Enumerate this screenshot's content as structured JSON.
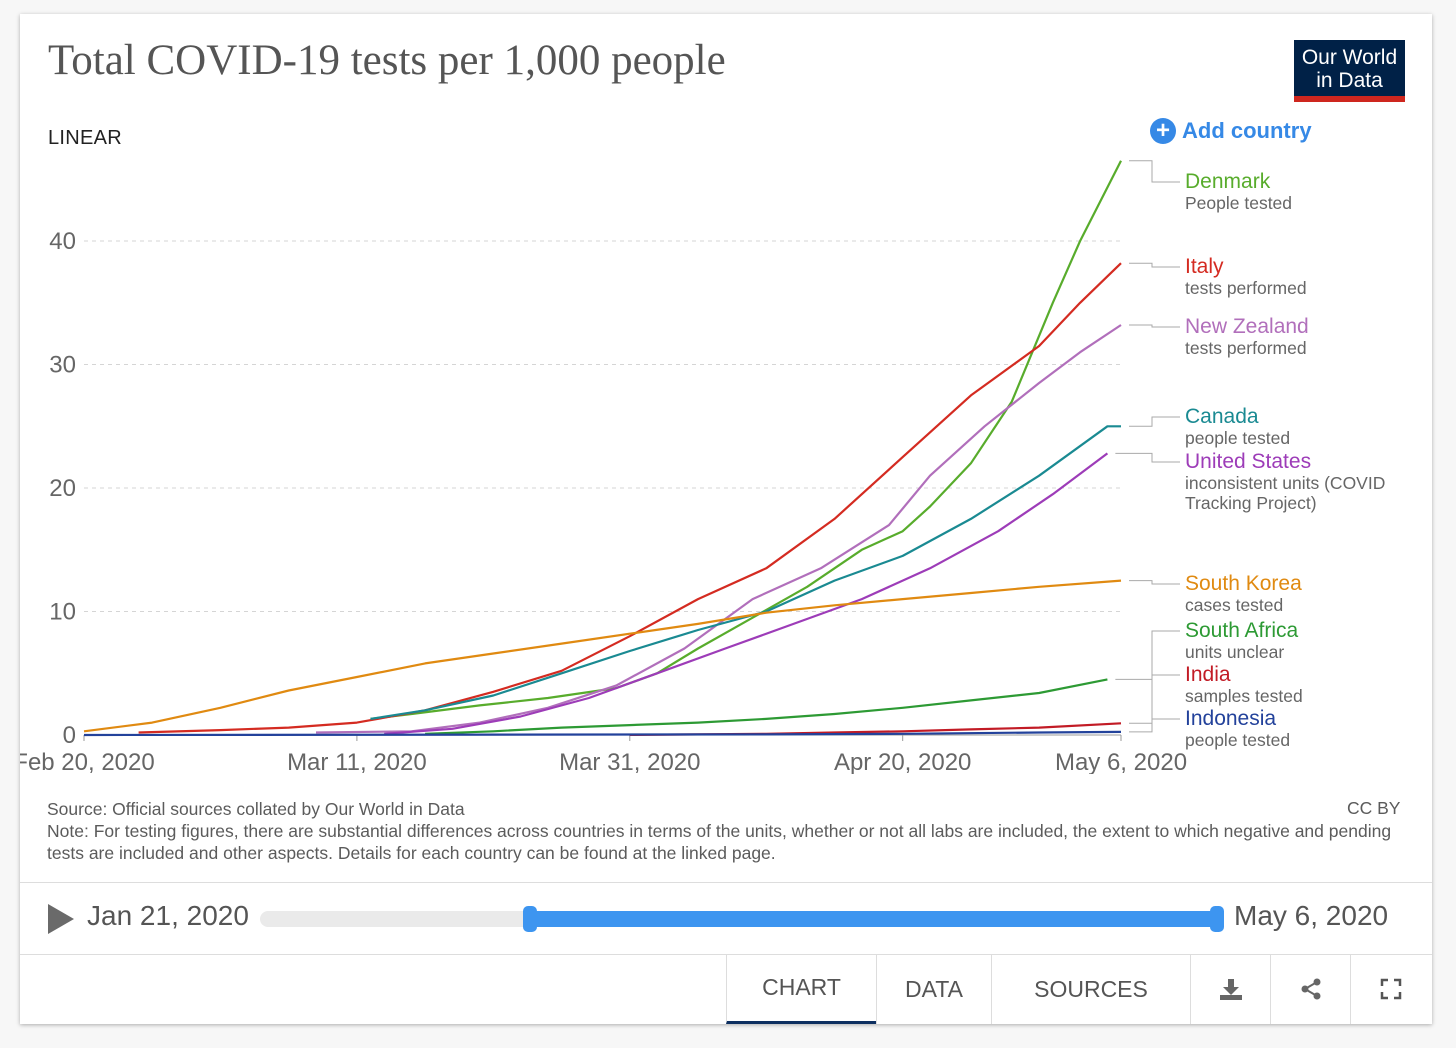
{
  "title": "Total COVID-19 tests per 1,000 people",
  "logo": {
    "line1": "Our World",
    "line2": "in Data"
  },
  "scale_toggle": "LINEAR",
  "add_country": "Add country",
  "footer": {
    "source": "Source: Official sources collated by Our World in Data",
    "note": "Note: For testing figures, there are substantial differences across countries in terms of the units, whether or not all labs are included, the extent to which negative and pending tests are included and other aspects. Details for each country can be found at the linked page.",
    "license": "CC BY"
  },
  "timeline": {
    "start": "Jan 21, 2020",
    "end": "May 6, 2020"
  },
  "tabs": {
    "chart": "CHART",
    "data": "DATA",
    "sources": "SOURCES"
  },
  "icons": {
    "play": "play-icon",
    "download": "download-icon",
    "share": "share-icon",
    "fullscreen": "fullscreen-icon",
    "add": "plus-circle-icon"
  },
  "chart_data": {
    "type": "line",
    "title": "Total COVID-19 tests per 1,000 people",
    "x_ticks": [
      "Feb 20, 2020",
      "Mar 11, 2020",
      "Mar 31, 2020",
      "Apr 20, 2020",
      "May 6, 2020"
    ],
    "y_ticks": [
      0,
      10,
      20,
      30,
      40
    ],
    "xlim": [
      "2020-02-20",
      "2020-05-06"
    ],
    "ylim": [
      0,
      47
    ],
    "grid": "horizontal dashed",
    "legend": "right, line labels",
    "series": [
      {
        "name": "Denmark",
        "unit": "People tested",
        "color": "#58ac2c",
        "points": [
          [
            "2020-03-12",
            1.3
          ],
          [
            "2020-03-15",
            1.7
          ],
          [
            "2020-03-20",
            2.4
          ],
          [
            "2020-03-25",
            3.0
          ],
          [
            "2020-03-30",
            3.8
          ],
          [
            "2020-04-02",
            5.0
          ],
          [
            "2020-04-05",
            7.0
          ],
          [
            "2020-04-09",
            9.5
          ],
          [
            "2020-04-13",
            12.0
          ],
          [
            "2020-04-17",
            15.0
          ],
          [
            "2020-04-20",
            16.5
          ],
          [
            "2020-04-22",
            18.5
          ],
          [
            "2020-04-25",
            22.0
          ],
          [
            "2020-04-28",
            27.0
          ],
          [
            "2020-05-01",
            35.0
          ],
          [
            "2020-05-03",
            40.0
          ],
          [
            "2020-05-06",
            46.5
          ]
        ]
      },
      {
        "name": "Italy",
        "unit": "tests performed",
        "color": "#d42b21",
        "points": [
          [
            "2020-02-24",
            0.2
          ],
          [
            "2020-03-01",
            0.4
          ],
          [
            "2020-03-06",
            0.6
          ],
          [
            "2020-03-11",
            1.0
          ],
          [
            "2020-03-16",
            2.0
          ],
          [
            "2020-03-21",
            3.5
          ],
          [
            "2020-03-26",
            5.2
          ],
          [
            "2020-03-31",
            8.0
          ],
          [
            "2020-04-05",
            11.0
          ],
          [
            "2020-04-10",
            13.5
          ],
          [
            "2020-04-15",
            17.5
          ],
          [
            "2020-04-20",
            22.5
          ],
          [
            "2020-04-25",
            27.5
          ],
          [
            "2020-04-30",
            31.5
          ],
          [
            "2020-05-03",
            35.0
          ],
          [
            "2020-05-06",
            38.2
          ]
        ]
      },
      {
        "name": "New Zealand",
        "unit": "tests performed",
        "color": "#b16fbb",
        "points": [
          [
            "2020-03-08",
            0.2
          ],
          [
            "2020-03-15",
            0.3
          ],
          [
            "2020-03-20",
            1.0
          ],
          [
            "2020-03-25",
            2.2
          ],
          [
            "2020-03-30",
            4.0
          ],
          [
            "2020-04-04",
            7.0
          ],
          [
            "2020-04-09",
            11.0
          ],
          [
            "2020-04-14",
            13.5
          ],
          [
            "2020-04-19",
            17.0
          ],
          [
            "2020-04-22",
            21.0
          ],
          [
            "2020-04-26",
            25.0
          ],
          [
            "2020-04-30",
            28.5
          ],
          [
            "2020-05-03",
            31.0
          ],
          [
            "2020-05-06",
            33.2
          ]
        ]
      },
      {
        "name": "Canada",
        "unit": "people tested",
        "color": "#1a8a92",
        "points": [
          [
            "2020-03-12",
            1.3
          ],
          [
            "2020-03-16",
            2.0
          ],
          [
            "2020-03-21",
            3.2
          ],
          [
            "2020-03-26",
            5.0
          ],
          [
            "2020-03-31",
            6.8
          ],
          [
            "2020-04-05",
            8.5
          ],
          [
            "2020-04-10",
            10.0
          ],
          [
            "2020-04-15",
            12.5
          ],
          [
            "2020-04-20",
            14.5
          ],
          [
            "2020-04-25",
            17.5
          ],
          [
            "2020-04-30",
            21.0
          ],
          [
            "2020-05-05",
            25.0
          ],
          [
            "2020-05-06",
            25.0
          ]
        ]
      },
      {
        "name": "United States",
        "unit": "inconsistent units (COVID Tracking Project)",
        "color": "#9d3cb8",
        "points": [
          [
            "2020-03-13",
            0.1
          ],
          [
            "2020-03-18",
            0.5
          ],
          [
            "2020-03-23",
            1.5
          ],
          [
            "2020-03-28",
            3.0
          ],
          [
            "2020-04-02",
            5.0
          ],
          [
            "2020-04-07",
            7.0
          ],
          [
            "2020-04-12",
            9.0
          ],
          [
            "2020-04-17",
            11.0
          ],
          [
            "2020-04-22",
            13.5
          ],
          [
            "2020-04-27",
            16.5
          ],
          [
            "2020-05-01",
            19.5
          ],
          [
            "2020-05-05",
            22.8
          ]
        ]
      },
      {
        "name": "South Korea",
        "unit": "cases tested",
        "color": "#e08a11",
        "points": [
          [
            "2020-02-20",
            0.3
          ],
          [
            "2020-02-25",
            1.0
          ],
          [
            "2020-03-01",
            2.2
          ],
          [
            "2020-03-06",
            3.6
          ],
          [
            "2020-03-11",
            4.7
          ],
          [
            "2020-03-16",
            5.8
          ],
          [
            "2020-03-21",
            6.6
          ],
          [
            "2020-03-26",
            7.4
          ],
          [
            "2020-03-31",
            8.2
          ],
          [
            "2020-04-05",
            9.0
          ],
          [
            "2020-04-10",
            9.9
          ],
          [
            "2020-04-15",
            10.5
          ],
          [
            "2020-04-20",
            11.0
          ],
          [
            "2020-04-25",
            11.5
          ],
          [
            "2020-04-30",
            12.0
          ],
          [
            "2020-05-06",
            12.5
          ]
        ]
      },
      {
        "name": "South Africa",
        "unit": "units unclear",
        "color": "#2d9a34",
        "points": [
          [
            "2020-03-16",
            0.1
          ],
          [
            "2020-03-21",
            0.3
          ],
          [
            "2020-03-26",
            0.6
          ],
          [
            "2020-03-31",
            0.8
          ],
          [
            "2020-04-05",
            1.0
          ],
          [
            "2020-04-10",
            1.3
          ],
          [
            "2020-04-15",
            1.7
          ],
          [
            "2020-04-20",
            2.2
          ],
          [
            "2020-04-25",
            2.8
          ],
          [
            "2020-04-30",
            3.4
          ],
          [
            "2020-05-05",
            4.5
          ]
        ]
      },
      {
        "name": "India",
        "unit": "samples tested",
        "color": "#c21b25",
        "points": [
          [
            "2020-03-31",
            0.01
          ],
          [
            "2020-04-05",
            0.05
          ],
          [
            "2020-04-10",
            0.1
          ],
          [
            "2020-04-15",
            0.2
          ],
          [
            "2020-04-20",
            0.3
          ],
          [
            "2020-04-25",
            0.45
          ],
          [
            "2020-04-30",
            0.6
          ],
          [
            "2020-05-06",
            0.95
          ]
        ]
      },
      {
        "name": "Indonesia",
        "unit": "people tested",
        "color": "#23429b",
        "points": [
          [
            "2020-02-20",
            0.0
          ],
          [
            "2020-04-10",
            0.05
          ],
          [
            "2020-04-20",
            0.1
          ],
          [
            "2020-04-30",
            0.2
          ],
          [
            "2020-05-06",
            0.25
          ]
        ]
      }
    ]
  }
}
